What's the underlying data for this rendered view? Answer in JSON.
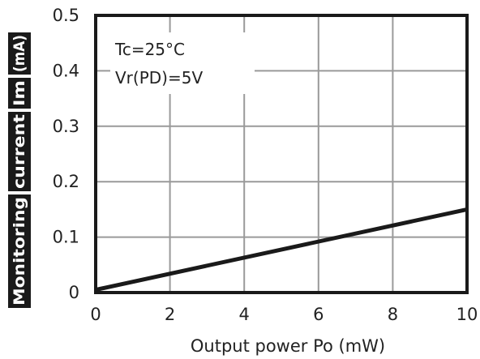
{
  "chart_data": {
    "type": "line",
    "xlabel": "Output power  Po  (mW)",
    "ylabel_parts": [
      "Monitoring",
      "current",
      "Im",
      "(mA)"
    ],
    "xlim": [
      0,
      10
    ],
    "ylim": [
      0,
      0.5
    ],
    "x_ticks": [
      "0",
      "2",
      "4",
      "6",
      "8",
      "10"
    ],
    "y_ticks": [
      "0",
      "0.1",
      "0.2",
      "0.3",
      "0.4",
      "0.5"
    ],
    "grid": true,
    "annotations": [
      "Tc=25°C",
      "Vr(PD)=5V"
    ],
    "series": [
      {
        "x": [
          0,
          10
        ],
        "y": [
          0.005,
          0.15
        ]
      }
    ],
    "colors": {
      "line": "#1a1a1a",
      "grid": "#9a9a9a",
      "frame": "#1a1a1a",
      "ylabel_bg": "#1a1a1a"
    }
  }
}
